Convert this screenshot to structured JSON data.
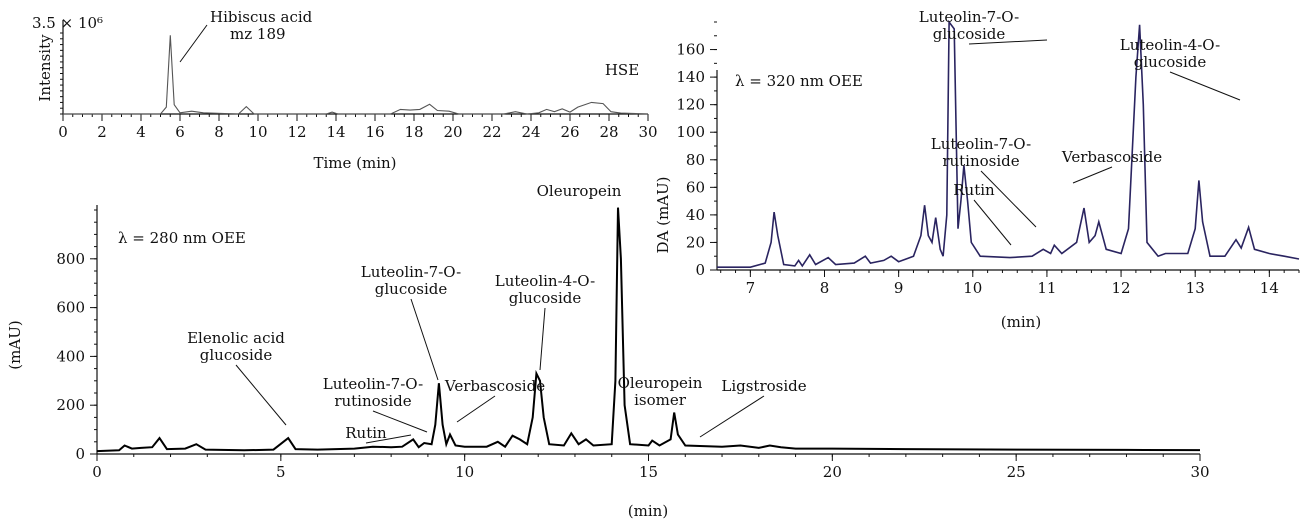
{
  "chart_data": [
    {
      "id": "ms",
      "type": "line",
      "ylabel": "Intensity",
      "y_max_label": "3.5 × 10⁶",
      "xlabel": "Time (min)",
      "x_ticks": [
        0,
        2,
        4,
        6,
        8,
        10,
        12,
        14,
        16,
        18,
        20,
        22,
        24,
        26,
        28,
        30
      ],
      "xlim": [
        0,
        30
      ],
      "ylim": [
        0,
        3.5
      ],
      "sample_label": "HSE",
      "series_color": "#555555",
      "points": [
        [
          0,
          0
        ],
        [
          5,
          0
        ],
        [
          5.3,
          0.3
        ],
        [
          5.5,
          3.4
        ],
        [
          5.7,
          0.4
        ],
        [
          6,
          0.05
        ],
        [
          6.6,
          0.12
        ],
        [
          7.2,
          0.05
        ],
        [
          9,
          0
        ],
        [
          9.4,
          0.32
        ],
        [
          9.8,
          0
        ],
        [
          13.5,
          0
        ],
        [
          13.8,
          0.08
        ],
        [
          14.1,
          0
        ],
        [
          16.8,
          0
        ],
        [
          17.3,
          0.2
        ],
        [
          17.8,
          0.17
        ],
        [
          18.3,
          0.2
        ],
        [
          18.8,
          0.42
        ],
        [
          19.2,
          0.15
        ],
        [
          19.8,
          0.12
        ],
        [
          20.3,
          0
        ],
        [
          22.6,
          0
        ],
        [
          23.2,
          0.1
        ],
        [
          23.8,
          0
        ],
        [
          24.4,
          0.05
        ],
        [
          24.8,
          0.2
        ],
        [
          25.2,
          0.1
        ],
        [
          25.6,
          0.22
        ],
        [
          26,
          0.08
        ],
        [
          26.4,
          0.3
        ],
        [
          27.1,
          0.5
        ],
        [
          27.7,
          0.45
        ],
        [
          28.1,
          0.1
        ],
        [
          28.6,
          0.04
        ],
        [
          30,
          0
        ]
      ],
      "annotations": [
        {
          "lines": [
            "Hibiscus acid",
            "mz 189"
          ],
          "x": 5.55,
          "y": 3.0
        }
      ]
    },
    {
      "id": "uv280",
      "type": "line",
      "ylabel": "(mAU)",
      "xlabel": "(min)",
      "x_ticks": [
        0,
        5,
        10,
        15,
        20,
        25,
        30
      ],
      "y_ticks": [
        0,
        200,
        400,
        600,
        800
      ],
      "xlim": [
        0,
        30
      ],
      "ylim": [
        0,
        1000
      ],
      "wavelength_label": "λ = 280 nm OEE",
      "series_color": "#000000",
      "points": [
        [
          0,
          12
        ],
        [
          0.6,
          15
        ],
        [
          0.75,
          35
        ],
        [
          0.95,
          22
        ],
        [
          1.2,
          25
        ],
        [
          1.5,
          28
        ],
        [
          1.7,
          65
        ],
        [
          1.9,
          20
        ],
        [
          2.4,
          22
        ],
        [
          2.7,
          40
        ],
        [
          2.95,
          18
        ],
        [
          4,
          15
        ],
        [
          4.8,
          18
        ],
        [
          5.2,
          65
        ],
        [
          5.4,
          20
        ],
        [
          6,
          18
        ],
        [
          7,
          22
        ],
        [
          7.5,
          30
        ],
        [
          8,
          28
        ],
        [
          8.3,
          30
        ],
        [
          8.6,
          60
        ],
        [
          8.75,
          28
        ],
        [
          8.9,
          45
        ],
        [
          9.1,
          40
        ],
        [
          9.2,
          120
        ],
        [
          9.3,
          290
        ],
        [
          9.4,
          120
        ],
        [
          9.5,
          40
        ],
        [
          9.6,
          80
        ],
        [
          9.75,
          35
        ],
        [
          10,
          30
        ],
        [
          10.6,
          30
        ],
        [
          10.9,
          50
        ],
        [
          11.1,
          30
        ],
        [
          11.3,
          75
        ],
        [
          11.5,
          60
        ],
        [
          11.7,
          40
        ],
        [
          11.85,
          150
        ],
        [
          11.95,
          330
        ],
        [
          12.05,
          300
        ],
        [
          12.15,
          150
        ],
        [
          12.3,
          40
        ],
        [
          12.7,
          35
        ],
        [
          12.9,
          85
        ],
        [
          13.1,
          40
        ],
        [
          13.3,
          60
        ],
        [
          13.5,
          35
        ],
        [
          14,
          40
        ],
        [
          14.1,
          300
        ],
        [
          14.17,
          1010
        ],
        [
          14.25,
          800
        ],
        [
          14.35,
          200
        ],
        [
          14.5,
          40
        ],
        [
          15,
          35
        ],
        [
          15.1,
          55
        ],
        [
          15.3,
          35
        ],
        [
          15.6,
          60
        ],
        [
          15.7,
          170
        ],
        [
          15.8,
          80
        ],
        [
          16,
          35
        ],
        [
          17,
          30
        ],
        [
          17.5,
          35
        ],
        [
          18,
          25
        ],
        [
          18.3,
          35
        ],
        [
          18.6,
          28
        ],
        [
          19,
          22
        ],
        [
          20,
          22
        ],
        [
          22,
          20
        ],
        [
          25,
          18
        ],
        [
          28,
          17
        ],
        [
          30,
          16
        ]
      ],
      "annotations": [
        {
          "lines": [
            "Elenolic acid",
            "glucoside"
          ],
          "x": 5.2,
          "y": 60
        },
        {
          "lines": [
            "Rutin"
          ],
          "x": 8.55,
          "y": 55
        },
        {
          "lines": [
            "Luteolin-7-O-",
            "rutinoside"
          ],
          "x": 8.9,
          "y": 45
        },
        {
          "lines": [
            "Luteolin-7-O-",
            "glucoside"
          ],
          "x": 9.25,
          "y": 280
        },
        {
          "lines": [
            "Verbascoside"
          ],
          "x": 9.65,
          "y": 75
        },
        {
          "lines": [
            "Luteolin-4-O-",
            "glucoside"
          ],
          "x": 11.95,
          "y": 320
        },
        {
          "lines": [
            "Oleuropein"
          ],
          "x": 14.17,
          "y": 1010
        },
        {
          "lines": [
            "Oleuropein",
            "isomer"
          ],
          "x": 15.7,
          "y": 165
        },
        {
          "lines": [
            "Ligstroside"
          ],
          "x": 17.2,
          "y": 35
        }
      ]
    },
    {
      "id": "uv320",
      "type": "line",
      "ylabel": "DA (mAU)",
      "xlabel": "(min)",
      "x_ticks": [
        7,
        8,
        9,
        10,
        11,
        12,
        13,
        14
      ],
      "y_ticks": [
        0,
        20,
        40,
        60,
        80,
        100,
        120,
        140,
        160
      ],
      "xlim": [
        6.55,
        14.4
      ],
      "ylim": [
        0,
        180
      ],
      "wavelength_label": "λ = 320 nm OEE",
      "series_color": "#2a2460",
      "points": [
        [
          6.55,
          2
        ],
        [
          7,
          2
        ],
        [
          7.2,
          5
        ],
        [
          7.28,
          20
        ],
        [
          7.32,
          42
        ],
        [
          7.37,
          25
        ],
        [
          7.45,
          4
        ],
        [
          7.6,
          3
        ],
        [
          7.65,
          7
        ],
        [
          7.7,
          3
        ],
        [
          7.8,
          11
        ],
        [
          7.88,
          4
        ],
        [
          8.05,
          9
        ],
        [
          8.15,
          4
        ],
        [
          8.4,
          5
        ],
        [
          8.55,
          10
        ],
        [
          8.62,
          5
        ],
        [
          8.8,
          7
        ],
        [
          8.9,
          10
        ],
        [
          9,
          6
        ],
        [
          9.1,
          8
        ],
        [
          9.2,
          10
        ],
        [
          9.3,
          25
        ],
        [
          9.35,
          47
        ],
        [
          9.4,
          25
        ],
        [
          9.45,
          20
        ],
        [
          9.5,
          38
        ],
        [
          9.56,
          15
        ],
        [
          9.6,
          10
        ],
        [
          9.65,
          40
        ],
        [
          9.68,
          180
        ],
        [
          9.75,
          175
        ],
        [
          9.8,
          30
        ],
        [
          9.84,
          50
        ],
        [
          9.88,
          76
        ],
        [
          9.93,
          50
        ],
        [
          9.98,
          20
        ],
        [
          10.1,
          10
        ],
        [
          10.5,
          9
        ],
        [
          10.8,
          10
        ],
        [
          10.95,
          15
        ],
        [
          11.05,
          12
        ],
        [
          11.1,
          18
        ],
        [
          11.2,
          12
        ],
        [
          11.4,
          20
        ],
        [
          11.5,
          45
        ],
        [
          11.57,
          20
        ],
        [
          11.65,
          25
        ],
        [
          11.7,
          35
        ],
        [
          11.8,
          15
        ],
        [
          12,
          12
        ],
        [
          12.1,
          30
        ],
        [
          12.2,
          140
        ],
        [
          12.25,
          178
        ],
        [
          12.3,
          120
        ],
        [
          12.35,
          20
        ],
        [
          12.5,
          10
        ],
        [
          12.6,
          12
        ],
        [
          12.9,
          12
        ],
        [
          13,
          30
        ],
        [
          13.05,
          65
        ],
        [
          13.1,
          35
        ],
        [
          13.2,
          10
        ],
        [
          13.4,
          10
        ],
        [
          13.55,
          22
        ],
        [
          13.62,
          16
        ],
        [
          13.72,
          31
        ],
        [
          13.8,
          15
        ],
        [
          14,
          12
        ],
        [
          14.2,
          10
        ],
        [
          14.4,
          8
        ]
      ],
      "annotations": [
        {
          "lines": [
            "Luteolin-7-O-",
            "glucoside"
          ],
          "x": 9.7,
          "y": 178
        },
        {
          "lines": [
            "Luteolin-4-O-",
            "glucoside"
          ],
          "x": 12.22,
          "y": 150
        },
        {
          "lines": [
            "Luteolin-7-O-",
            "rutinoside"
          ],
          "x": 9.48,
          "y": 35
        },
        {
          "lines": [
            "Verbascoside"
          ],
          "x": 9.87,
          "y": 72
        },
        {
          "lines": [
            "Rutin"
          ],
          "x": 9.33,
          "y": 25
        }
      ]
    }
  ]
}
